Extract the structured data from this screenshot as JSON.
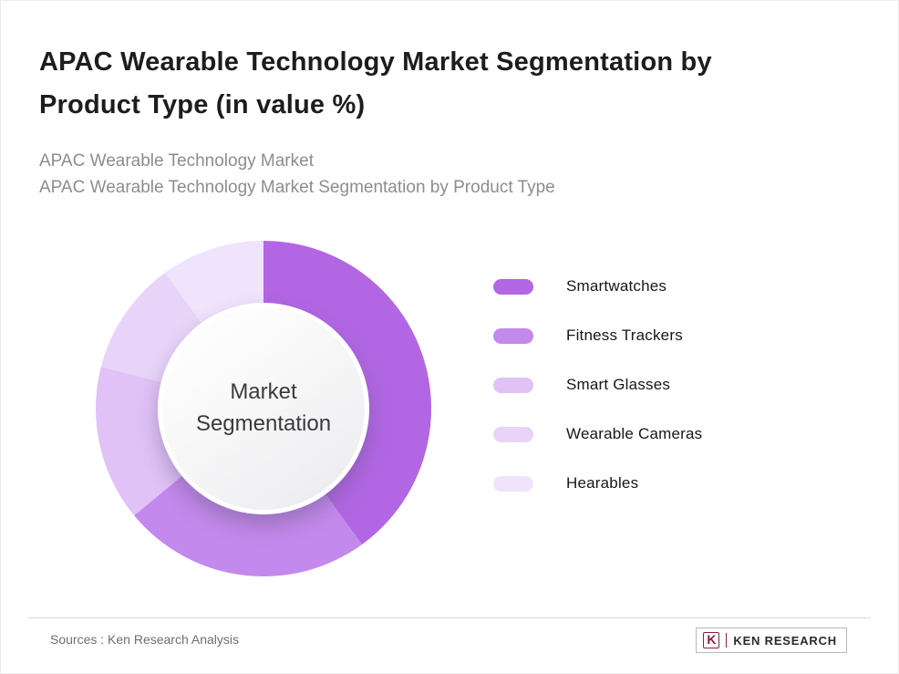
{
  "header": {
    "title": "APAC Wearable Technology Market Segmentation by Product Type (in value %)",
    "subtitle_line1": "APAC Wearable Technology Market",
    "subtitle_line2": "APAC Wearable Technology Market Segmentation by Product Type"
  },
  "chart_data": {
    "type": "pie",
    "variant": "donut",
    "center_label": "Market Segmentation",
    "categories": [
      "Smartwatches",
      "Fitness Trackers",
      "Smart Glasses",
      "Wearable Cameras",
      "Hearables"
    ],
    "values": [
      40,
      24,
      15,
      11,
      10
    ],
    "colors": [
      "#b266e3",
      "#c489ec",
      "#e0c2f6",
      "#e9d4f9",
      "#f0e3fc"
    ],
    "legend_position": "right",
    "start_angle_deg": 0,
    "direction": "clockwise"
  },
  "footer": {
    "sources": "Sources : Ken Research Analysis",
    "logo": {
      "initial": "K",
      "brand": "KEN RESEARCH"
    }
  }
}
